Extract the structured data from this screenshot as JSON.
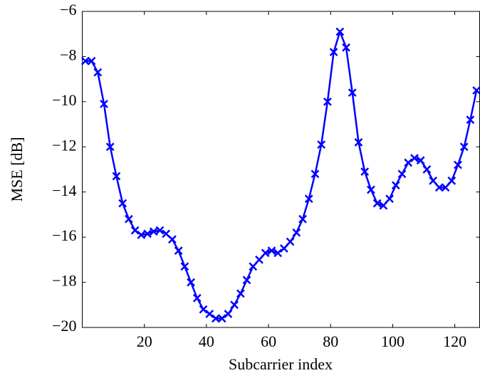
{
  "chart_data": {
    "type": "line",
    "x_label": "Subcarrier index",
    "y_label": "MSE [dB]",
    "x": [
      1,
      3,
      5,
      7,
      9,
      11,
      13,
      15,
      17,
      19,
      21,
      23,
      25,
      27,
      29,
      31,
      33,
      35,
      37,
      39,
      41,
      43,
      45,
      47,
      49,
      51,
      53,
      55,
      57,
      59,
      61,
      63,
      65,
      67,
      69,
      71,
      73,
      75,
      77,
      79,
      81,
      83,
      85,
      87,
      89,
      91,
      93,
      95,
      97,
      99,
      101,
      103,
      105,
      107,
      109,
      111,
      113,
      115,
      117,
      119,
      121,
      123,
      125,
      127
    ],
    "series": [
      {
        "color": "#0000ff",
        "marker": "x",
        "values": [
          -8.2,
          -8.2,
          -8.7,
          -10.1,
          -12.0,
          -13.3,
          -14.5,
          -15.2,
          -15.7,
          -15.9,
          -15.85,
          -15.75,
          -15.7,
          -15.85,
          -16.1,
          -16.6,
          -17.3,
          -18.0,
          -18.7,
          -19.2,
          -19.4,
          -19.6,
          -19.6,
          -19.4,
          -19.0,
          -18.5,
          -17.9,
          -17.3,
          -17.0,
          -16.7,
          -16.6,
          -16.7,
          -16.5,
          -16.2,
          -15.8,
          -15.2,
          -14.3,
          -13.2,
          -11.9,
          -10.0,
          -7.8,
          -6.9,
          -7.6,
          -9.6,
          -11.8,
          -13.1,
          -13.9,
          -14.5,
          -14.6,
          -14.3,
          -13.7,
          -13.2,
          -12.7,
          -12.5,
          -12.6,
          -13.0,
          -13.5,
          -13.8,
          -13.8,
          -13.5,
          -12.8,
          -12.0,
          -10.8,
          -9.5
        ]
      }
    ],
    "xlim": [
      0,
      128
    ],
    "xticks": [
      20,
      40,
      60,
      80,
      100,
      120
    ],
    "ylim": [
      -20,
      -6
    ],
    "yticks": [
      {
        "value": -20,
        "label": "−20"
      },
      {
        "value": -18,
        "label": "−18"
      },
      {
        "value": -16,
        "label": "−16"
      },
      {
        "value": -14,
        "label": "−14"
      },
      {
        "value": -12,
        "label": "−12"
      },
      {
        "value": -10,
        "label": "−10"
      },
      {
        "value": -8,
        "label": "−8"
      },
      {
        "value": -6,
        "label": "−6"
      }
    ],
    "grid": false
  }
}
